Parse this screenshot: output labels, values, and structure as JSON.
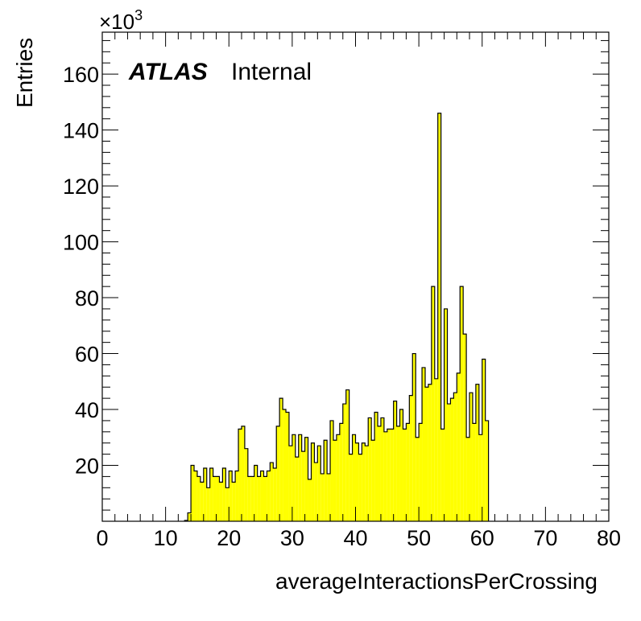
{
  "chart_data": {
    "type": "bar",
    "xlabel": "averageInteractionsPerCrossing",
    "ylabel": "Entries",
    "y_multiplier_base": "×10",
    "y_multiplier_exp": "3",
    "label_main": "ATLAS",
    "label_sub": "Internal",
    "xlim": [
      0,
      80
    ],
    "ylim": [
      0,
      175
    ],
    "x_ticks": [
      0,
      10,
      20,
      30,
      40,
      50,
      60,
      70,
      80
    ],
    "y_ticks": [
      20,
      40,
      60,
      80,
      100,
      120,
      140,
      160
    ],
    "bin_width": 0.5,
    "x_start": 13,
    "values": [
      0.3,
      3,
      20,
      18,
      16,
      14,
      19,
      12,
      19,
      16,
      16,
      14,
      19,
      12,
      18,
      14,
      18,
      33,
      34,
      26,
      16,
      16,
      20,
      16,
      18,
      16,
      18,
      21,
      19,
      34,
      44,
      40,
      39,
      27,
      31,
      23,
      31,
      25,
      30,
      15,
      28,
      21,
      27,
      17,
      29,
      17,
      36,
      29,
      31,
      35,
      42,
      47,
      24,
      31,
      28,
      24,
      28,
      27,
      37,
      29,
      39,
      34,
      37,
      32,
      33,
      33,
      43,
      34,
      40,
      33,
      35,
      45,
      60,
      30,
      35,
      55,
      48,
      49,
      84,
      51,
      146,
      33,
      76,
      42,
      44,
      46,
      53,
      84,
      67,
      30,
      46,
      35,
      49,
      31,
      58,
      36
    ],
    "fill_color": "#ffff00",
    "line_color": "#000000",
    "grid": false
  }
}
